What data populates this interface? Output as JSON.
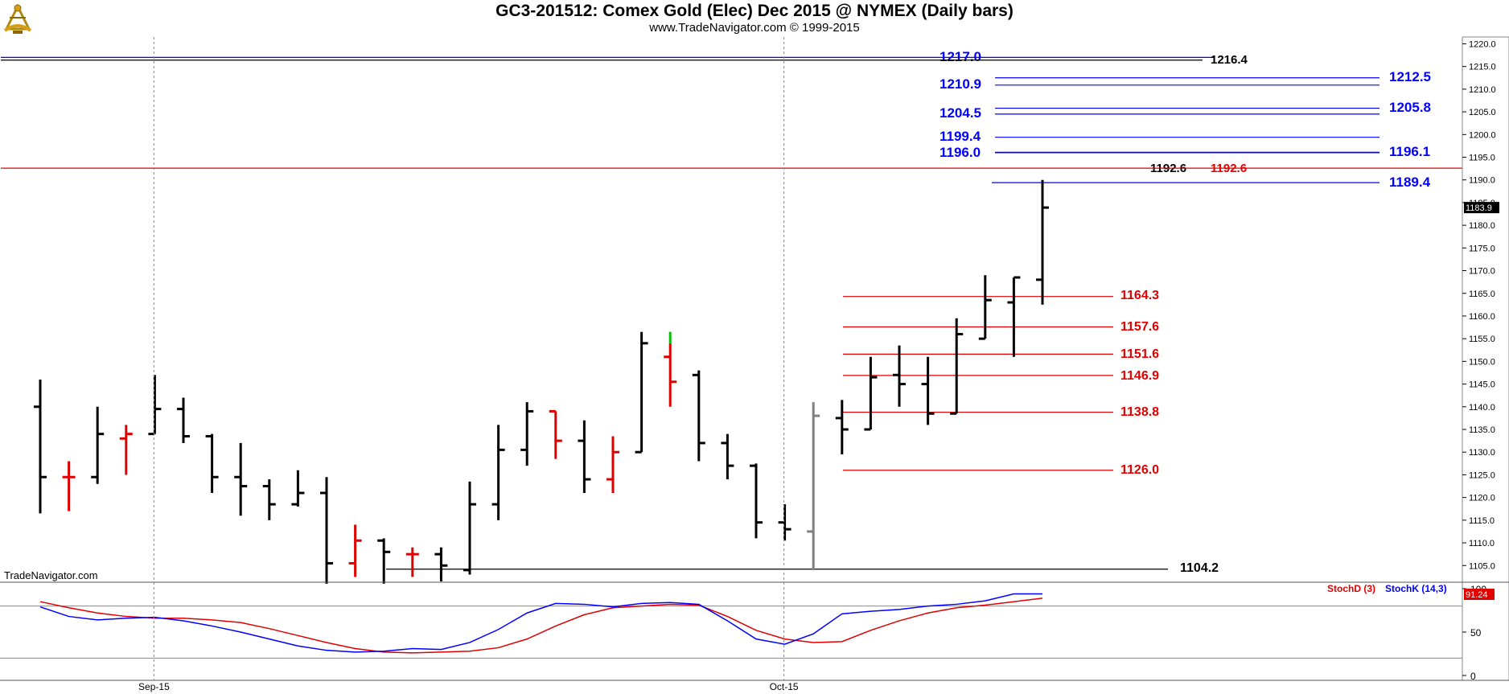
{
  "header": {
    "title": "GC3-201512:  Comex Gold (Elec) Dec 2015 @ NYMEX  (Daily bars)",
    "subtitle": "www.TradeNavigator.com © 1999-2015"
  },
  "watermark": "TradeNavigator.com",
  "logo_icon": "sextant-logo-icon",
  "colors": {
    "background": "#ffffff",
    "panel_bg": "#e0e0e0",
    "up_bar": "#000000",
    "down_bar": "#e00000",
    "grey_bar": "#808080",
    "green_tick": "#00c000",
    "blue_level": "#0000ff",
    "red_level": "#e00000",
    "black_level": "#000000",
    "stoch_d": "#e00000",
    "stoch_k": "#0000ff"
  },
  "chart_data": [
    {
      "type": "ohlc",
      "title": "GC3-201512:  Comex Gold (Elec) Dec 2015 @ NYMEX  (Daily bars)",
      "y_ticks": [
        "1105.0",
        "1110.0",
        "1115.0",
        "1120.0",
        "1125.0",
        "1130.0",
        "1135.0",
        "1140.0",
        "1145.0",
        "1150.0",
        "1155.0",
        "1160.0",
        "1165.0",
        "1170.0",
        "1175.0",
        "1180.0",
        "1185.0",
        "1190.0",
        "1195.0",
        "1200.0",
        "1205.0",
        "1210.0",
        "1215.0",
        "1220.0"
      ],
      "ylim": [
        1101.5,
        1221.5
      ],
      "x_ticks": [
        {
          "label": "Sep-15",
          "index": 4
        },
        {
          "label": "Oct-15",
          "index": 26
        }
      ],
      "grid": "vertical dotted at month starts",
      "last_price": "1183.9",
      "bars": [
        {
          "o": 1140,
          "h": 1146,
          "l": 1116.5,
          "c": 1124.5,
          "color": "black"
        },
        {
          "o": 1124.5,
          "h": 1128,
          "l": 1117,
          "c": 1124.5,
          "color": "red"
        },
        {
          "o": 1124.5,
          "h": 1140,
          "l": 1123,
          "c": 1134,
          "color": "black"
        },
        {
          "o": 1133,
          "h": 1136,
          "l": 1125,
          "c": 1134,
          "color": "red"
        },
        {
          "o": 1134,
          "h": 1147,
          "l": 1134,
          "c": 1139.5,
          "color": "black"
        },
        {
          "o": 1139.5,
          "h": 1142,
          "l": 1132,
          "c": 1133.5,
          "color": "black"
        },
        {
          "o": 1133.5,
          "h": 1134,
          "l": 1121,
          "c": 1124.5,
          "color": "black"
        },
        {
          "o": 1124.5,
          "h": 1132,
          "l": 1116,
          "c": 1122.5,
          "color": "black"
        },
        {
          "o": 1122.5,
          "h": 1124,
          "l": 1115,
          "c": 1118.5,
          "color": "black"
        },
        {
          "o": 1118.5,
          "h": 1126,
          "l": 1118,
          "c": 1121,
          "color": "black"
        },
        {
          "o": 1121,
          "h": 1124.5,
          "l": 1101,
          "c": 1105.5,
          "color": "black"
        },
        {
          "o": 1105.5,
          "h": 1114,
          "l": 1102.5,
          "c": 1110.5,
          "color": "red"
        },
        {
          "o": 1110.5,
          "h": 1111,
          "l": 1101,
          "c": 1108,
          "color": "black"
        },
        {
          "o": 1107.5,
          "h": 1109,
          "l": 1102.5,
          "c": 1107.5,
          "color": "red"
        },
        {
          "o": 1107.5,
          "h": 1109,
          "l": 1101.5,
          "c": 1105,
          "color": "black"
        },
        {
          "o": 1104,
          "h": 1123.5,
          "l": 1103,
          "c": 1118.5,
          "color": "black"
        },
        {
          "o": 1118.5,
          "h": 1136,
          "l": 1115,
          "c": 1130.5,
          "color": "black"
        },
        {
          "o": 1130.5,
          "h": 1141,
          "l": 1127,
          "c": 1139,
          "color": "black"
        },
        {
          "o": 1139,
          "h": 1139,
          "l": 1128.5,
          "c": 1132.5,
          "color": "red"
        },
        {
          "o": 1132.5,
          "h": 1137,
          "l": 1121,
          "c": 1124,
          "color": "black"
        },
        {
          "o": 1124,
          "h": 1133.5,
          "l": 1121,
          "c": 1130,
          "color": "red"
        },
        {
          "o": 1130,
          "h": 1156.5,
          "l": 1130,
          "c": 1154,
          "color": "black"
        },
        {
          "o": 1151,
          "h": 1154,
          "l": 1140,
          "c": 1145.5,
          "color": "red"
        },
        {
          "o": 1147,
          "h": 1148,
          "l": 1128,
          "c": 1132,
          "color": "black"
        },
        {
          "o": 1132,
          "h": 1134,
          "l": 1124,
          "c": 1127,
          "color": "black"
        },
        {
          "o": 1127,
          "h": 1127.5,
          "l": 1111,
          "c": 1114.5,
          "color": "black"
        },
        {
          "o": 1114.5,
          "h": 1118.5,
          "l": 1110.5,
          "c": 1113,
          "color": "black"
        },
        {
          "o": 1112.5,
          "h": 1141,
          "l": 1104,
          "c": 1138,
          "color": "grey"
        },
        {
          "o": 1137.5,
          "h": 1141.5,
          "l": 1129.5,
          "c": 1135,
          "color": "black"
        },
        {
          "o": 1135,
          "h": 1151,
          "l": 1135,
          "c": 1146.5,
          "color": "black"
        },
        {
          "o": 1147,
          "h": 1153.5,
          "l": 1140,
          "c": 1145,
          "color": "black"
        },
        {
          "o": 1145,
          "h": 1151,
          "l": 1136,
          "c": 1138.5,
          "color": "black"
        },
        {
          "o": 1138.5,
          "h": 1159.5,
          "l": 1138.5,
          "c": 1156,
          "color": "black"
        },
        {
          "o": 1155,
          "h": 1169,
          "l": 1155,
          "c": 1163.5,
          "color": "black"
        },
        {
          "o": 1163,
          "h": 1168.5,
          "l": 1151,
          "c": 1168.5,
          "color": "black"
        },
        {
          "o": 1168,
          "h": 1190,
          "l": 1162.5,
          "c": 1183.9,
          "color": "black"
        }
      ],
      "levels": [
        {
          "label": "1217.0",
          "value": 1217.0,
          "color": "blue"
        },
        {
          "label": "1216.4",
          "value": 1216.4,
          "color": "black"
        },
        {
          "label": "1212.5",
          "value": 1212.5,
          "color": "blue"
        },
        {
          "label": "1210.9",
          "value": 1210.9,
          "color": "blue"
        },
        {
          "label": "1205.8",
          "value": 1205.8,
          "color": "blue"
        },
        {
          "label": "1204.5",
          "value": 1204.5,
          "color": "blue"
        },
        {
          "label": "1199.4",
          "value": 1199.4,
          "color": "blue"
        },
        {
          "label": "1196.1",
          "value": 1196.1,
          "color": "blue"
        },
        {
          "label": "1196.0",
          "value": 1196.0,
          "color": "blue"
        },
        {
          "label": "1192.6",
          "value": 1192.6,
          "color": "black"
        },
        {
          "label": "1192.6",
          "value": 1192.6,
          "color": "red"
        },
        {
          "label": "1189.4",
          "value": 1189.4,
          "color": "blue"
        },
        {
          "label": "1164.3",
          "value": 1164.3,
          "color": "red"
        },
        {
          "label": "1157.6",
          "value": 1157.6,
          "color": "red"
        },
        {
          "label": "1151.6",
          "value": 1151.6,
          "color": "red"
        },
        {
          "label": "1146.9",
          "value": 1146.9,
          "color": "red"
        },
        {
          "label": "1138.8",
          "value": 1138.8,
          "color": "red"
        },
        {
          "label": "1126.0",
          "value": 1126.0,
          "color": "red"
        },
        {
          "label": "1104.2",
          "value": 1104.2,
          "color": "black"
        }
      ]
    },
    {
      "type": "line",
      "ylim": [
        0,
        100
      ],
      "y_ticks": [
        "0",
        "50",
        "100"
      ],
      "reference_lines": [
        20,
        80
      ],
      "series": [
        {
          "name": "StochD (3)",
          "color": "red",
          "values": [
            85,
            78,
            72,
            68,
            66,
            66,
            64,
            61,
            54,
            46,
            38,
            31,
            27,
            26,
            27,
            28,
            32,
            42,
            57,
            70,
            78,
            80,
            82,
            81,
            68,
            52,
            42,
            38,
            39,
            52,
            63,
            72,
            78,
            81,
            85,
            89
          ]
        },
        {
          "name": "StochK (14,3)",
          "color": "blue",
          "values": [
            79,
            68,
            64,
            66,
            67,
            63,
            57,
            50,
            42,
            34,
            29,
            27,
            28,
            31,
            30,
            38,
            53,
            72,
            83,
            82,
            79,
            83,
            84,
            82,
            63,
            42,
            36,
            48,
            71,
            74,
            76,
            80,
            82,
            86,
            94,
            94
          ]
        }
      ],
      "last_value": "91.24"
    }
  ]
}
